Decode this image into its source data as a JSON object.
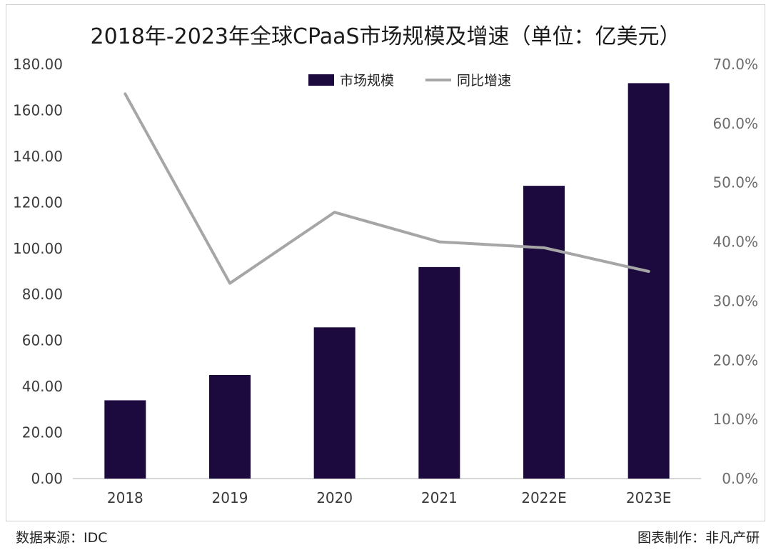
{
  "chart_data": {
    "type": "bar",
    "title": "2018年-2023年全球CPaaS市场规模及增速（单位：亿美元）",
    "categories": [
      "2018",
      "2019",
      "2020",
      "2021",
      "2022E",
      "2023E"
    ],
    "series": [
      {
        "name": "市场规模",
        "type": "bar",
        "axis": "left",
        "color": "#1c0a3f",
        "values": [
          34.0,
          45.0,
          65.7,
          91.9,
          127.2,
          171.8
        ]
      },
      {
        "name": "同比增速",
        "type": "line",
        "axis": "right",
        "color": "#a6a6a6",
        "values": [
          65.0,
          33.0,
          45.0,
          40.0,
          39.0,
          35.0
        ]
      }
    ],
    "ylim_left": [
      0,
      180
    ],
    "yticks_left": [
      "0.00",
      "20.00",
      "40.00",
      "60.00",
      "80.00",
      "100.00",
      "120.00",
      "140.00",
      "160.00",
      "180.00"
    ],
    "ylim_right": [
      0,
      70
    ],
    "yticks_right": [
      "0.0%",
      "10.0%",
      "20.0%",
      "30.0%",
      "40.0%",
      "50.0%",
      "60.0%",
      "70.0%"
    ],
    "legend_position": "top-center",
    "grid": false
  },
  "footer": {
    "source": "数据来源：IDC",
    "maker": "图表制作：非凡产研"
  }
}
